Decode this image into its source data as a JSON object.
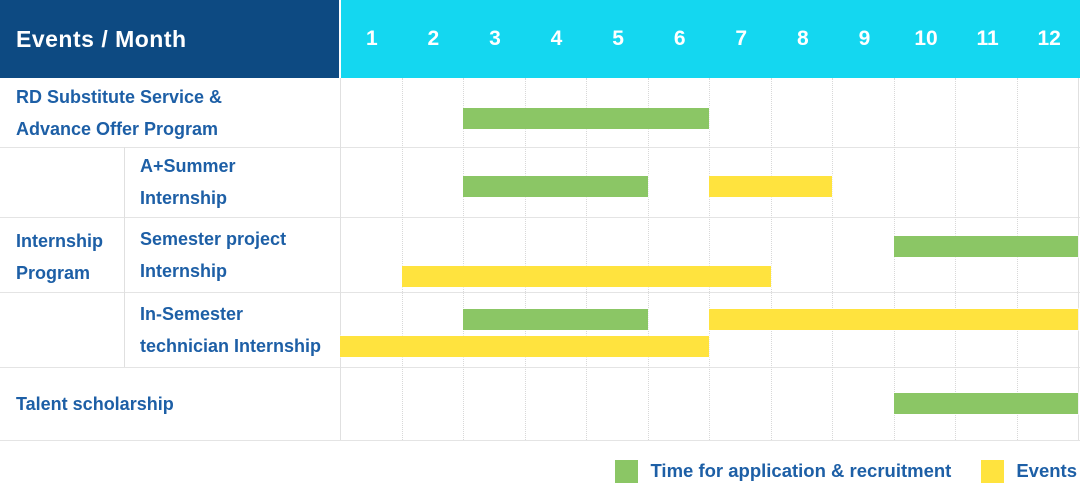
{
  "header": {
    "title": "Events / Month",
    "months": [
      "1",
      "2",
      "3",
      "4",
      "5",
      "6",
      "7",
      "8",
      "9",
      "10",
      "11",
      "12"
    ]
  },
  "colors": {
    "header_bg": "#0D4A82",
    "month_header_bg": "#14D7F0",
    "label_text": "#1D5FA6",
    "application": "#8BC665",
    "event": "#FFE33E",
    "row_border": "#E4E4E4",
    "grid_dotted": "#D8D8D8"
  },
  "legend": {
    "items": [
      {
        "type": "application",
        "label": "Time for application & recruitment"
      },
      {
        "type": "event",
        "label": "Events"
      }
    ]
  },
  "chart_data": {
    "type": "gantt",
    "x_unit": "month",
    "x_range": [
      1,
      12
    ],
    "x_ticks": [
      1,
      2,
      3,
      4,
      5,
      6,
      7,
      8,
      9,
      10,
      11,
      12
    ],
    "series": [
      {
        "name": "Time for application & recruitment",
        "color": "#8BC665"
      },
      {
        "name": "Events",
        "color": "#FFE33E"
      }
    ],
    "group": {
      "label": "Internship Program",
      "label_lines": [
        "Internship",
        "Program"
      ],
      "row_indexes": [
        1,
        2,
        3
      ]
    },
    "rows": [
      {
        "label": "RD Substitute Service & Advance Offer Program",
        "label_lines": [
          "RD Substitute Service &",
          "Advance Offer Program"
        ],
        "in_group": false,
        "bars": [
          {
            "type": "application",
            "start_month": 3,
            "end_month": 6,
            "track": "single"
          }
        ]
      },
      {
        "label": "A+Summer Internship",
        "label_lines": [
          "A+Summer",
          "Internship"
        ],
        "in_group": true,
        "bars": [
          {
            "type": "application",
            "start_month": 3,
            "end_month": 5,
            "track": "single"
          },
          {
            "type": "event",
            "start_month": 7,
            "end_month": 8,
            "track": "single"
          }
        ]
      },
      {
        "label": "Semester project Internship",
        "label_lines": [
          "Semester project",
          "Internship"
        ],
        "in_group": true,
        "bars": [
          {
            "type": "application",
            "start_month": 10,
            "end_month": 12,
            "track": "upper"
          },
          {
            "type": "event",
            "start_month": 2,
            "end_month": 7,
            "track": "lower"
          }
        ]
      },
      {
        "label": "In-Semester technician Internship",
        "label_lines": [
          "In-Semester",
          "technician Internship"
        ],
        "in_group": true,
        "bars": [
          {
            "type": "application",
            "start_month": 3,
            "end_month": 5,
            "track": "upper"
          },
          {
            "type": "event",
            "start_month": 7,
            "end_month": 12,
            "track": "upper"
          },
          {
            "type": "event",
            "start_month": 1,
            "end_month": 6,
            "track": "lower"
          }
        ]
      },
      {
        "label": "Talent scholarship",
        "label_lines": [
          "Talent scholarship"
        ],
        "in_group": false,
        "bars": [
          {
            "type": "application",
            "start_month": 10,
            "end_month": 12,
            "track": "single"
          }
        ]
      }
    ]
  }
}
